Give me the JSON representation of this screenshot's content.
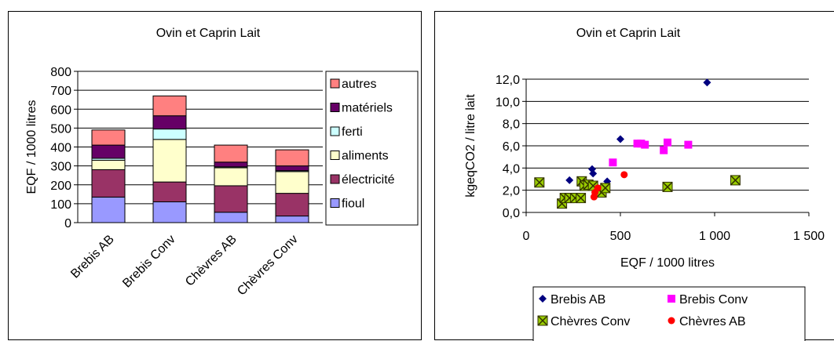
{
  "chart_data": [
    {
      "type": "bar",
      "stacked": true,
      "title": "Ovin et Caprin Lait",
      "xlabel": "",
      "ylabel": "EQF / 1000 litres",
      "ylim": [
        0,
        800
      ],
      "yticks": [
        0,
        100,
        200,
        300,
        400,
        500,
        600,
        700,
        800
      ],
      "grid": true,
      "legend": "right",
      "categories": [
        "Brebis AB",
        "Brebis Conv",
        "Chèvres AB",
        "Chèvres Conv"
      ],
      "series": [
        {
          "name": "fioul",
          "color": "#9999ff",
          "values": [
            135,
            110,
            55,
            35
          ]
        },
        {
          "name": "électricité",
          "color": "#993366",
          "values": [
            145,
            105,
            140,
            120
          ]
        },
        {
          "name": "aliments",
          "color": "#ffffcc",
          "values": [
            50,
            225,
            95,
            115
          ]
        },
        {
          "name": "ferti",
          "color": "#ccffff",
          "values": [
            10,
            55,
            5,
            5
          ]
        },
        {
          "name": "matériels",
          "color": "#660066",
          "values": [
            70,
            70,
            25,
            25
          ]
        },
        {
          "name": "autres",
          "color": "#ff8080",
          "values": [
            80,
            105,
            90,
            85
          ]
        }
      ]
    },
    {
      "type": "scatter",
      "title": "Ovin et Caprin Lait",
      "xlabel": "EQF / 1000 litres",
      "ylabel": "kgeqCO2 / litre lait",
      "xlim": [
        0,
        1500
      ],
      "ylim": [
        0,
        12
      ],
      "xticks": [
        0,
        500,
        1000,
        1500
      ],
      "xtick_labels": [
        "0",
        "500",
        "1 000",
        "1 500"
      ],
      "yticks": [
        0,
        2,
        4,
        6,
        8,
        10,
        12
      ],
      "ytick_labels": [
        "0,0",
        "2,0",
        "4,0",
        "6,0",
        "8,0",
        "10,0",
        "12,0"
      ],
      "grid": true,
      "legend": "bottom",
      "series": [
        {
          "name": "Brebis AB",
          "color": "#000080",
          "marker": "diamond",
          "points": [
            [
              230,
              2.9
            ],
            [
              350,
              3.9
            ],
            [
              355,
              3.5
            ],
            [
              430,
              2.8
            ],
            [
              500,
              6.6
            ],
            [
              960,
              11.7
            ]
          ]
        },
        {
          "name": "Brebis Conv",
          "color": "#ff00ff",
          "marker": "square",
          "points": [
            [
              460,
              4.5
            ],
            [
              590,
              6.2
            ],
            [
              610,
              6.2
            ],
            [
              630,
              6.1
            ],
            [
              730,
              5.6
            ],
            [
              750,
              6.3
            ],
            [
              860,
              6.1
            ]
          ]
        },
        {
          "name": "Chèvres Conv",
          "color": "#99cc00",
          "marker": "boxx",
          "points": [
            [
              70,
              2.7
            ],
            [
              190,
              0.8
            ],
            [
              205,
              1.3
            ],
            [
              230,
              1.3
            ],
            [
              260,
              1.3
            ],
            [
              290,
              1.3
            ],
            [
              295,
              2.8
            ],
            [
              310,
              2.4
            ],
            [
              330,
              2.5
            ],
            [
              355,
              2.4
            ],
            [
              400,
              1.8
            ],
            [
              420,
              2.2
            ],
            [
              750,
              2.3
            ],
            [
              1110,
              2.9
            ]
          ]
        },
        {
          "name": "Chèvres AB",
          "color": "#ff0000",
          "marker": "circle",
          "points": [
            [
              360,
              1.4
            ],
            [
              365,
              1.8
            ],
            [
              380,
              2.2
            ],
            [
              520,
              3.4
            ]
          ]
        }
      ]
    }
  ]
}
